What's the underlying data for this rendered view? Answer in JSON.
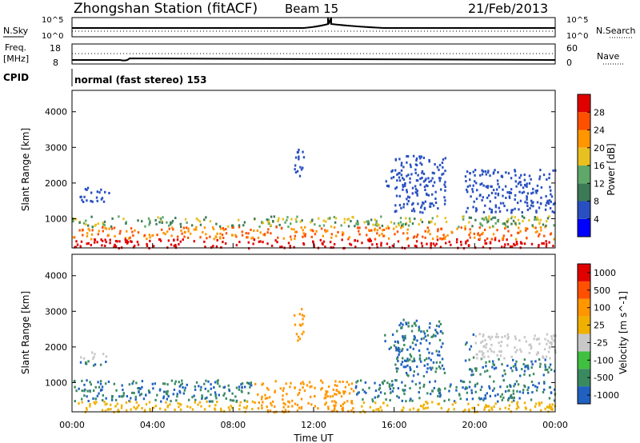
{
  "header": {
    "station": "Zhongshan Station (fitACF)",
    "beam": "Beam 15",
    "date": "21/Feb/2013"
  },
  "summary_panels": {
    "nsky_label": "N.Sky",
    "nsky_top": "10^5",
    "nsky_bottom": "10^0",
    "nsearch_label": "N.Search",
    "nsearch_top": "10^5",
    "nsearch_bottom": "10^0",
    "freq_label": "Freq.",
    "freq_unit": "[MHz]",
    "freq_top": "18",
    "freq_bottom": "8",
    "nave_label": "Nave",
    "nave_top": "60",
    "nave_bottom": "0",
    "cpid_label": "CPID",
    "cpid_value": "normal (fast stereo) 153"
  },
  "colors": {
    "power_scale": [
      "#0000ff",
      "#2850c0",
      "#3b7a55",
      "#5fa86a",
      "#e8c020",
      "#ff9600",
      "#ff5000",
      "#e00000"
    ],
    "velocity_scale": [
      "#e00000",
      "#ff5000",
      "#ff9600",
      "#f0b000",
      "#c8c8c8",
      "#40c040",
      "#3a8a60",
      "#2060c0"
    ]
  },
  "chart_data": [
    {
      "type": "heatmap",
      "title": "",
      "xlabel": "",
      "ylabel": "Slant Range [km]",
      "ylim": [
        180,
        4600
      ],
      "yticks": [
        "1000",
        "2000",
        "3000",
        "4000"
      ],
      "colorbar_label": "Power [dB]",
      "colorbar_ticks": [
        "4",
        "8",
        "12",
        "16",
        "20",
        "24",
        "28"
      ],
      "colorbar_range": [
        0,
        32
      ]
    },
    {
      "type": "heatmap",
      "title": "",
      "xlabel": "Time UT",
      "ylabel": "Slant Range [km]",
      "ylim": [
        180,
        4600
      ],
      "yticks": [
        "1000",
        "2000",
        "3000",
        "4000"
      ],
      "xticks": [
        "00:00",
        "04:00",
        "08:00",
        "12:00",
        "16:00",
        "20:00",
        "00:00"
      ],
      "colorbar_label": "Velocity [m s^-1]",
      "colorbar_ticks": [
        "1000",
        "500",
        "100",
        "25",
        "-25",
        "-100",
        "-500",
        "-1000"
      ]
    }
  ]
}
